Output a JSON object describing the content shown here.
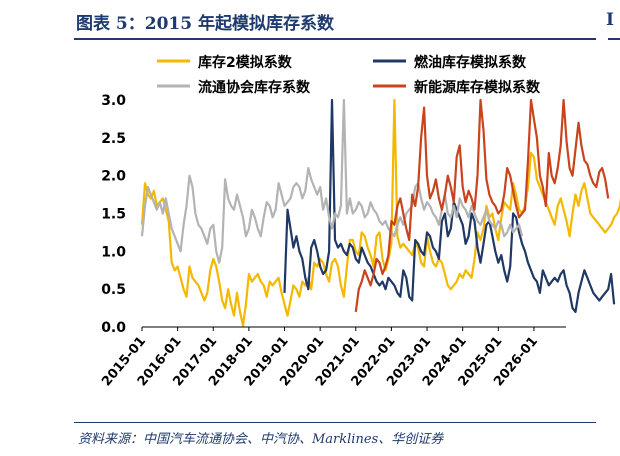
{
  "figure": {
    "title": "图表 5：2015 年起模拟库存系数",
    "right_fragment": "I",
    "source": "资料来源：中国汽车流通协会、中汽协、Marklines、华创证券"
  },
  "chart_data": {
    "type": "line",
    "title": "",
    "xlabel": "",
    "ylabel": "",
    "ylim": [
      0,
      3.0
    ],
    "yticks": [
      "0.0",
      "0.5",
      "1.0",
      "1.5",
      "2.0",
      "2.5",
      "3.0"
    ],
    "xlim": [
      2015.0,
      2026.9
    ],
    "xticks": [
      "2015-01",
      "2016-01",
      "2017-01",
      "2018-01",
      "2019-01",
      "2020-01",
      "2021-01",
      "2022-01",
      "2023-01",
      "2024-01",
      "2025-01",
      "2026-01"
    ],
    "grid": false,
    "legend_position": "top",
    "series": [
      {
        "name": "库存2模拟系数",
        "color": "#F5B800",
        "start": "2015-01",
        "values": [
          1.35,
          1.9,
          1.75,
          1.7,
          1.8,
          1.6,
          1.65,
          1.7,
          1.55,
          1.4,
          0.85,
          0.75,
          0.8,
          0.65,
          0.5,
          0.4,
          0.8,
          0.65,
          0.6,
          0.55,
          0.45,
          0.35,
          0.45,
          0.75,
          0.9,
          0.8,
          0.6,
          0.35,
          0.25,
          0.5,
          0.3,
          0.15,
          0.45,
          0.2,
          0.02,
          0.3,
          0.7,
          0.6,
          0.65,
          0.7,
          0.6,
          0.55,
          0.4,
          0.6,
          0.55,
          0.6,
          0.65,
          0.45,
          0.3,
          0.15,
          0.35,
          0.55,
          0.5,
          0.4,
          0.6,
          0.55,
          0.65,
          0.5,
          0.85,
          0.8,
          0.9,
          0.85,
          0.7,
          0.6,
          0.85,
          0.9,
          0.8,
          0.55,
          0.4,
          0.8,
          1.15,
          1.15,
          1.0,
          0.95,
          1.25,
          1.2,
          1.05,
          0.95,
          0.8,
          1.2,
          1.25,
          0.9,
          0.75,
          0.9,
          1.1,
          3.0,
          1.2,
          1.05,
          1.1,
          1.05,
          1.0,
          0.95,
          1.1,
          1.05,
          0.85,
          0.8,
          1.2,
          1.0,
          0.85,
          0.8,
          0.9,
          0.85,
          0.7,
          0.55,
          0.5,
          0.55,
          0.6,
          0.7,
          0.65,
          0.75,
          0.7,
          0.65,
          0.9,
          1.25,
          1.15,
          1.3,
          1.6,
          1.45,
          1.5,
          1.3,
          1.15,
          1.45,
          1.65,
          1.6,
          1.55,
          1.9,
          1.75,
          1.55,
          1.5,
          1.6,
          1.85,
          2.3,
          2.25,
          1.95,
          1.85,
          1.75,
          1.65,
          1.55,
          1.45,
          1.35,
          1.6,
          1.7,
          1.55,
          1.4,
          1.2,
          1.5,
          1.75,
          1.6,
          1.8,
          1.9,
          1.7,
          1.5,
          1.45,
          1.4,
          1.35,
          1.3,
          1.25,
          1.3,
          1.35,
          1.45,
          1.5,
          1.6,
          1.9,
          2.7,
          1.7,
          1.5,
          1.45,
          1.55,
          1.75,
          1.9,
          1.95,
          1.6,
          1.5,
          1.55,
          1.7,
          2.0,
          1.95,
          1.75,
          1.7,
          1.55,
          1.45,
          1.5,
          1.45,
          1.35,
          1.3,
          1.5,
          1.4,
          1.15
        ]
      },
      {
        "name": "燃油库存模拟系数",
        "color": "#1F3864",
        "start": "2019-01",
        "values": [
          0.45,
          1.55,
          1.3,
          1.05,
          1.2,
          1.0,
          0.9,
          0.65,
          0.5,
          1.05,
          1.15,
          1.0,
          0.8,
          0.7,
          0.75,
          1.0,
          3.0,
          1.15,
          1.05,
          1.1,
          1.0,
          0.95,
          1.1,
          1.05,
          0.9,
          0.85,
          1.05,
          0.95,
          0.85,
          0.8,
          0.7,
          0.6,
          0.55,
          0.6,
          0.5,
          0.65,
          0.6,
          0.55,
          0.45,
          0.4,
          0.75,
          0.65,
          0.4,
          0.35,
          1.15,
          1.1,
          1.0,
          0.95,
          1.25,
          1.2,
          1.05,
          1.0,
          0.9,
          1.4,
          1.5,
          1.2,
          1.3,
          1.65,
          1.55,
          1.45,
          1.35,
          1.1,
          1.2,
          1.5,
          1.4,
          1.05,
          0.85,
          1.1,
          1.35,
          1.4,
          1.2,
          1.0,
          0.85,
          0.95,
          0.75,
          0.6,
          0.8,
          1.5,
          1.45,
          1.25,
          1.1,
          1.0,
          0.85,
          0.75,
          0.65,
          0.6,
          0.45,
          0.75,
          0.65,
          0.55,
          0.6,
          0.65,
          0.6,
          0.7,
          0.75,
          0.55,
          0.45,
          0.25,
          0.2,
          0.45,
          0.6,
          0.75,
          0.65,
          0.55,
          0.45,
          0.4,
          0.35,
          0.4,
          0.45,
          0.5,
          0.7,
          0.3
        ]
      },
      {
        "name": "流通协会库存系数",
        "color": "#B3B3B3",
        "start": "2015-01",
        "values": [
          1.2,
          1.6,
          1.85,
          1.75,
          1.65,
          1.55,
          1.65,
          1.5,
          1.7,
          1.5,
          1.3,
          1.2,
          1.1,
          1.0,
          1.35,
          1.6,
          2.0,
          1.85,
          1.5,
          1.35,
          1.3,
          1.2,
          1.1,
          1.3,
          1.35,
          1.0,
          0.85,
          1.05,
          1.95,
          1.7,
          1.6,
          1.55,
          1.75,
          1.6,
          1.45,
          1.2,
          1.3,
          1.55,
          1.45,
          1.3,
          1.2,
          1.45,
          1.65,
          1.6,
          1.45,
          1.55,
          1.9,
          1.75,
          1.6,
          1.65,
          1.7,
          1.85,
          1.9,
          1.85,
          1.7,
          1.8,
          2.1,
          1.95,
          1.85,
          1.75,
          1.85,
          1.55,
          1.7,
          1.45,
          1.3,
          1.5,
          1.45,
          1.6,
          3.0,
          1.5,
          1.7,
          1.5,
          1.55,
          1.65,
          1.6,
          1.45,
          1.5,
          1.65,
          1.55,
          1.5,
          1.4,
          1.35,
          1.4,
          1.3,
          1.25,
          1.2,
          1.35,
          1.45,
          1.35,
          1.5,
          1.55,
          1.6,
          1.85,
          1.9,
          1.7,
          1.55,
          1.65,
          1.6,
          1.5,
          1.45,
          1.35,
          1.55,
          1.75,
          1.5,
          1.45,
          1.6,
          1.45,
          1.7,
          1.6,
          1.55,
          1.45,
          1.6,
          1.5,
          1.4,
          1.35,
          1.45,
          1.55,
          1.4,
          1.35,
          1.3,
          1.4,
          1.35,
          1.2,
          1.25,
          1.35,
          1.25,
          1.3,
          1.35,
          1.2
        ]
      },
      {
        "name": "新能源库存模拟系数",
        "color": "#C9441C",
        "start": "2021-01",
        "values": [
          0.2,
          0.5,
          0.6,
          0.75,
          0.65,
          0.55,
          0.7,
          0.9,
          0.85,
          0.7,
          0.8,
          0.95,
          1.4,
          1.35,
          1.6,
          1.7,
          1.5,
          1.3,
          1.15,
          1.75,
          1.6,
          1.85,
          2.5,
          2.9,
          2.0,
          1.7,
          1.8,
          1.95,
          1.7,
          1.55,
          1.75,
          2.0,
          1.85,
          1.65,
          2.25,
          2.4,
          1.85,
          1.65,
          1.8,
          1.7,
          1.55,
          2.0,
          3.0,
          2.6,
          1.95,
          1.75,
          1.65,
          1.6,
          1.5,
          1.55,
          1.75,
          2.1,
          2.0,
          1.8,
          1.6,
          1.45,
          1.5,
          1.55,
          2.2,
          3.0,
          2.75,
          2.5,
          2.0,
          1.85,
          1.6,
          2.3,
          2.0,
          1.9,
          2.1,
          2.4,
          3.0,
          2.45,
          2.1,
          2.0,
          2.35,
          2.7,
          2.4,
          2.2,
          2.15,
          2.0,
          1.9,
          1.85,
          2.05,
          2.1,
          1.95,
          1.7
        ]
      }
    ]
  }
}
